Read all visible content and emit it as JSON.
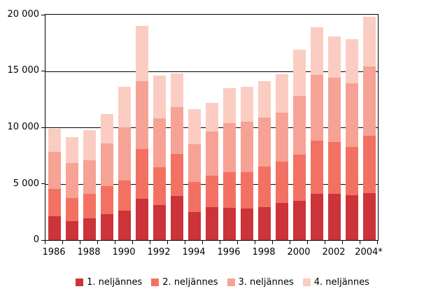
{
  "chart_data": {
    "type": "bar",
    "stacked": true,
    "title": "",
    "xlabel": "",
    "ylabel": "",
    "categories": [
      "1986",
      "1987",
      "1988",
      "1989",
      "1990",
      "1991",
      "1992",
      "1993",
      "1994",
      "1995",
      "1996",
      "1997",
      "1998",
      "1999",
      "2000",
      "2001",
      "2002",
      "2003",
      "2004*"
    ],
    "x_tick_labels": [
      "1986",
      "1988",
      "1990",
      "1992",
      "1994",
      "1996",
      "1998",
      "2000",
      "2002",
      "2004*"
    ],
    "y_tick_labels": [
      "20 000",
      "15 000",
      "10 000",
      "5 000",
      "0"
    ],
    "y_tick_values": [
      20000,
      15000,
      10000,
      5000,
      0
    ],
    "ylim": [
      0,
      20000
    ],
    "y_tick_interval": 5000,
    "grid": true,
    "legend_position": "bottom",
    "axis_color": "#000000",
    "background_color": "#ffffff",
    "series": [
      {
        "name": "1. neljännes",
        "color": "#cc3439",
        "values": [
          2100,
          1700,
          1900,
          2300,
          2600,
          3650,
          3100,
          3900,
          2500,
          2900,
          2850,
          2800,
          2900,
          3300,
          3450,
          4100,
          4100,
          3950,
          4150
        ]
      },
      {
        "name": "2. neljännes",
        "color": "#f37163",
        "values": [
          2450,
          2000,
          2200,
          2500,
          2700,
          4450,
          3350,
          3750,
          2650,
          2800,
          3150,
          3250,
          3650,
          3650,
          4150,
          4750,
          4600,
          4300,
          5100
        ]
      },
      {
        "name": "3. neljännes",
        "color": "#f6a295",
        "values": [
          3250,
          3150,
          3000,
          3800,
          4700,
          6000,
          4350,
          4150,
          3350,
          3950,
          4400,
          4450,
          4350,
          4350,
          5200,
          5800,
          5700,
          5650,
          6150
        ]
      },
      {
        "name": "4. neljännes",
        "color": "#fbcdc2",
        "values": [
          2050,
          2300,
          2650,
          2600,
          3600,
          4900,
          3800,
          3000,
          3100,
          2550,
          3100,
          3100,
          3200,
          3400,
          4100,
          4250,
          3700,
          3900,
          4400
        ]
      }
    ],
    "totals": [
      9850,
      9150,
      9750,
      11200,
      13600,
      19000,
      14600,
      14800,
      11600,
      12200,
      13500,
      13600,
      14100,
      14700,
      16900,
      18900,
      18100,
      17800,
      19800
    ]
  }
}
